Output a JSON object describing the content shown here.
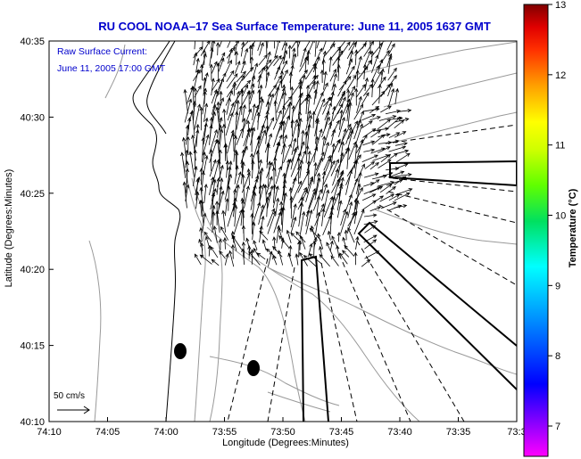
{
  "title": "RU COOL  NOAA–17  Sea Surface Temperature:  June 11, 2005 1637 GMT",
  "legend": {
    "line1": "Raw Surface Current:",
    "line2": "June 11, 2005 17:00 GMT"
  },
  "x_axis": {
    "label": "Longitude (Degrees:Minutes)",
    "ticks": [
      "74:10",
      "74:05",
      "74:00",
      "73:55",
      "73:50",
      "73:45",
      "73:40",
      "73:35",
      "73:3"
    ]
  },
  "y_axis": {
    "label": "Latitude (Degrees:Minutes)",
    "ticks": [
      "40:35",
      "40:30",
      "40:25",
      "40:20",
      "40:15",
      "40:10"
    ]
  },
  "colorbar": {
    "label": "Temperature (°C)",
    "ticks": [
      "13",
      "12",
      "11",
      "10",
      "9",
      "8",
      "7"
    ],
    "colors": [
      "#8b0000",
      "#ff0000",
      "#ff8000",
      "#ffff00",
      "#80ff00",
      "#00e000",
      "#00ffff",
      "#0080ff",
      "#0000ff",
      "#000080",
      "#8000ff",
      "#ff00ff"
    ]
  },
  "scale_arrow": {
    "label": "50 cm/s"
  },
  "colors": {
    "title": "#0000cc",
    "land": "#ffffff",
    "contour": "#999999"
  }
}
